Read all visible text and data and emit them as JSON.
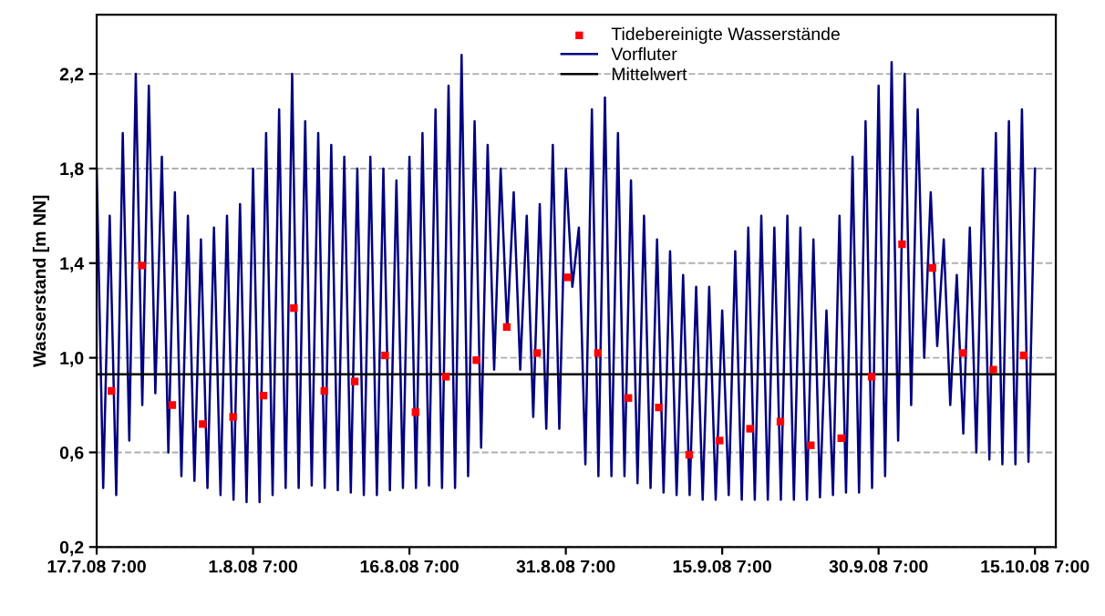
{
  "chart_data": {
    "type": "line",
    "ylabel": "Wasserstand [m NN]",
    "xlim": [
      "2008-07-17T07:00",
      "2008-10-17T07:00"
    ],
    "xticks": [
      {
        "value": "2008-07-17T07:00",
        "label": "17.7.08 7:00"
      },
      {
        "value": "2008-08-01T07:00",
        "label": "1.8.08 7:00"
      },
      {
        "value": "2008-08-16T07:00",
        "label": "16.8.08 7:00"
      },
      {
        "value": "2008-08-31T07:00",
        "label": "31.8.08 7:00"
      },
      {
        "value": "2008-09-15T07:00",
        "label": "15.9.08 7:00"
      },
      {
        "value": "2008-09-30T07:00",
        "label": "30.9.08 7:00"
      },
      {
        "value": "2008-10-15T07:00",
        "label": "15.10.08 7:00"
      }
    ],
    "ylim": [
      0.2,
      2.45
    ],
    "yticks": [
      {
        "value": 0.2,
        "label": "0,2"
      },
      {
        "value": 0.6,
        "label": "0,6"
      },
      {
        "value": 1.0,
        "label": "1,0"
      },
      {
        "value": 1.4,
        "label": "1,4"
      },
      {
        "value": 1.8,
        "label": "1,8"
      },
      {
        "value": 2.2,
        "label": "2,2"
      }
    ],
    "grid": "y",
    "legend": "top",
    "series": [
      {
        "name": "Tidebereinigte Wasserstände",
        "type": "scatter",
        "marker": "square",
        "color": "#ff0000",
        "x": [
          "2008-07-18T17:00",
          "2008-07-21T15:00",
          "2008-07-24T13:00",
          "2008-07-27T11:00",
          "2008-07-30T09:00",
          "2008-08-02T07:00",
          "2008-08-05T05:00",
          "2008-08-08T03:00",
          "2008-08-11T01:00",
          "2008-08-13T23:00",
          "2008-08-16T21:00",
          "2008-08-19T19:00",
          "2008-08-22T17:00",
          "2008-08-25T15:00",
          "2008-08-28T13:00",
          "2008-08-31T11:00",
          "2008-09-03T09:00",
          "2008-09-06T07:00",
          "2008-09-09T05:00",
          "2008-09-12T03:00",
          "2008-09-15T01:00",
          "2008-09-17T23:00",
          "2008-09-20T21:00",
          "2008-09-23T19:00",
          "2008-09-26T17:00",
          "2008-09-29T15:00",
          "2008-10-02T13:00",
          "2008-10-05T11:00",
          "2008-10-08T09:00",
          "2008-10-11T07:00",
          "2008-10-14T05:00"
        ],
        "values": [
          0.86,
          1.39,
          0.8,
          0.72,
          0.75,
          0.84,
          1.21,
          0.86,
          0.9,
          1.01,
          0.77,
          0.92,
          0.99,
          1.13,
          1.02,
          1.34,
          1.02,
          0.83,
          0.79,
          0.59,
          0.65,
          0.7,
          0.73,
          0.63,
          0.66,
          0.92,
          1.48,
          1.38,
          1.02,
          0.95,
          1.01
        ]
      },
      {
        "name": "Vorfluter",
        "color": "#000080",
        "x": [
          "2008-07-17T07:00",
          "2008-07-17T22:00",
          "2008-07-18T13:00",
          "2008-07-19T04:00",
          "2008-07-19T19:00",
          "2008-07-20T10:00",
          "2008-07-21T01:00",
          "2008-07-21T16:00",
          "2008-07-22T07:00",
          "2008-07-22T22:00",
          "2008-07-23T13:00",
          "2008-07-24T04:00",
          "2008-07-24T19:00",
          "2008-07-25T10:00",
          "2008-07-26T01:00",
          "2008-07-26T16:00",
          "2008-07-27T07:00",
          "2008-07-27T22:00",
          "2008-07-28T13:00",
          "2008-07-29T04:00",
          "2008-07-29T19:00",
          "2008-07-30T10:00",
          "2008-07-31T01:00",
          "2008-07-31T16:00",
          "2008-08-01T07:00",
          "2008-08-01T22:00",
          "2008-08-02T13:00",
          "2008-08-03T04:00",
          "2008-08-03T19:00",
          "2008-08-04T10:00",
          "2008-08-05T01:00",
          "2008-08-05T16:00",
          "2008-08-06T07:00",
          "2008-08-06T22:00",
          "2008-08-07T13:00",
          "2008-08-08T04:00",
          "2008-08-08T19:00",
          "2008-08-09T10:00",
          "2008-08-10T01:00",
          "2008-08-10T16:00",
          "2008-08-11T07:00",
          "2008-08-11T22:00",
          "2008-08-12T13:00",
          "2008-08-13T04:00",
          "2008-08-13T19:00",
          "2008-08-14T10:00",
          "2008-08-15T01:00",
          "2008-08-15T16:00",
          "2008-08-16T07:00",
          "2008-08-16T22:00",
          "2008-08-17T13:00",
          "2008-08-18T04:00",
          "2008-08-18T19:00",
          "2008-08-19T10:00",
          "2008-08-20T01:00",
          "2008-08-20T16:00",
          "2008-08-21T07:00",
          "2008-08-21T22:00",
          "2008-08-22T13:00",
          "2008-08-23T04:00",
          "2008-08-23T19:00",
          "2008-08-24T10:00",
          "2008-08-25T01:00",
          "2008-08-25T16:00",
          "2008-08-26T07:00",
          "2008-08-26T22:00",
          "2008-08-27T13:00",
          "2008-08-28T04:00",
          "2008-08-28T19:00",
          "2008-08-29T10:00",
          "2008-08-30T01:00",
          "2008-08-30T16:00",
          "2008-08-31T07:00",
          "2008-08-31T22:00",
          "2008-09-01T13:00",
          "2008-09-02T04:00",
          "2008-09-02T19:00",
          "2008-09-03T10:00",
          "2008-09-04T01:00",
          "2008-09-04T16:00",
          "2008-09-05T07:00",
          "2008-09-05T22:00",
          "2008-09-06T13:00",
          "2008-09-07T04:00",
          "2008-09-07T19:00",
          "2008-09-08T10:00",
          "2008-09-09T01:00",
          "2008-09-09T16:00",
          "2008-09-10T07:00",
          "2008-09-10T22:00",
          "2008-09-11T13:00",
          "2008-09-12T04:00",
          "2008-09-12T19:00",
          "2008-09-13T10:00",
          "2008-09-14T01:00",
          "2008-09-14T16:00",
          "2008-09-15T07:00",
          "2008-09-15T22:00",
          "2008-09-16T13:00",
          "2008-09-17T04:00",
          "2008-09-17T19:00",
          "2008-09-18T10:00",
          "2008-09-19T01:00",
          "2008-09-19T16:00",
          "2008-09-20T07:00",
          "2008-09-20T22:00",
          "2008-09-21T13:00",
          "2008-09-22T04:00",
          "2008-09-22T19:00",
          "2008-09-23T10:00",
          "2008-09-24T01:00",
          "2008-09-24T16:00",
          "2008-09-25T07:00",
          "2008-09-25T22:00",
          "2008-09-26T13:00",
          "2008-09-27T04:00",
          "2008-09-27T19:00",
          "2008-09-28T10:00",
          "2008-09-29T01:00",
          "2008-09-29T16:00",
          "2008-09-30T07:00",
          "2008-09-30T22:00",
          "2008-10-01T13:00",
          "2008-10-02T04:00",
          "2008-10-02T19:00",
          "2008-10-03T10:00",
          "2008-10-04T01:00",
          "2008-10-04T16:00",
          "2008-10-05T07:00",
          "2008-10-05T22:00",
          "2008-10-06T13:00",
          "2008-10-07T04:00",
          "2008-10-07T19:00",
          "2008-10-08T10:00",
          "2008-10-09T01:00",
          "2008-10-09T16:00",
          "2008-10-10T07:00",
          "2008-10-10T22:00",
          "2008-10-11T13:00",
          "2008-10-12T04:00",
          "2008-10-12T19:00",
          "2008-10-13T10:00",
          "2008-10-14T01:00",
          "2008-10-14T16:00",
          "2008-10-15T07:00"
        ],
        "values": [
          1.8,
          0.45,
          1.6,
          0.42,
          1.95,
          0.65,
          2.2,
          0.8,
          2.15,
          0.85,
          1.85,
          0.6,
          1.7,
          0.5,
          1.6,
          0.48,
          1.5,
          0.45,
          1.55,
          0.42,
          1.6,
          0.4,
          1.65,
          0.39,
          1.8,
          0.39,
          1.95,
          0.42,
          2.05,
          0.45,
          2.2,
          0.45,
          2.0,
          0.46,
          1.95,
          0.45,
          1.9,
          0.44,
          1.85,
          0.43,
          1.8,
          0.42,
          1.85,
          0.42,
          1.8,
          0.44,
          1.75,
          0.45,
          1.85,
          0.45,
          1.95,
          0.46,
          2.05,
          0.45,
          2.15,
          0.45,
          2.28,
          0.5,
          2.0,
          0.62,
          1.9,
          0.95,
          1.8,
          1.12,
          1.7,
          0.95,
          1.6,
          0.75,
          1.65,
          0.7,
          1.9,
          0.7,
          1.8,
          1.3,
          1.55,
          0.55,
          2.05,
          0.5,
          2.1,
          0.5,
          1.95,
          0.5,
          1.75,
          0.47,
          1.6,
          0.45,
          1.5,
          0.43,
          1.45,
          0.42,
          1.35,
          0.42,
          1.3,
          0.4,
          1.3,
          0.4,
          1.2,
          0.42,
          1.45,
          0.4,
          1.55,
          0.4,
          1.6,
          0.4,
          1.55,
          0.4,
          1.6,
          0.4,
          1.55,
          0.4,
          1.5,
          0.41,
          1.2,
          0.42,
          1.6,
          0.43,
          1.85,
          0.43,
          2.0,
          0.45,
          2.15,
          0.5,
          2.25,
          0.65,
          2.2,
          0.8,
          2.05,
          1.0,
          1.7,
          1.05,
          1.5,
          0.8,
          1.35,
          0.68,
          1.55,
          0.6,
          1.8,
          0.57,
          1.95,
          0.55,
          2.0,
          0.55,
          2.05,
          0.56,
          1.8
        ]
      },
      {
        "name": "Mittelwert",
        "color": "#000000",
        "x": [
          "2008-07-17T07:00",
          "2008-10-17T07:00"
        ],
        "values": [
          0.93,
          0.93
        ]
      }
    ]
  }
}
